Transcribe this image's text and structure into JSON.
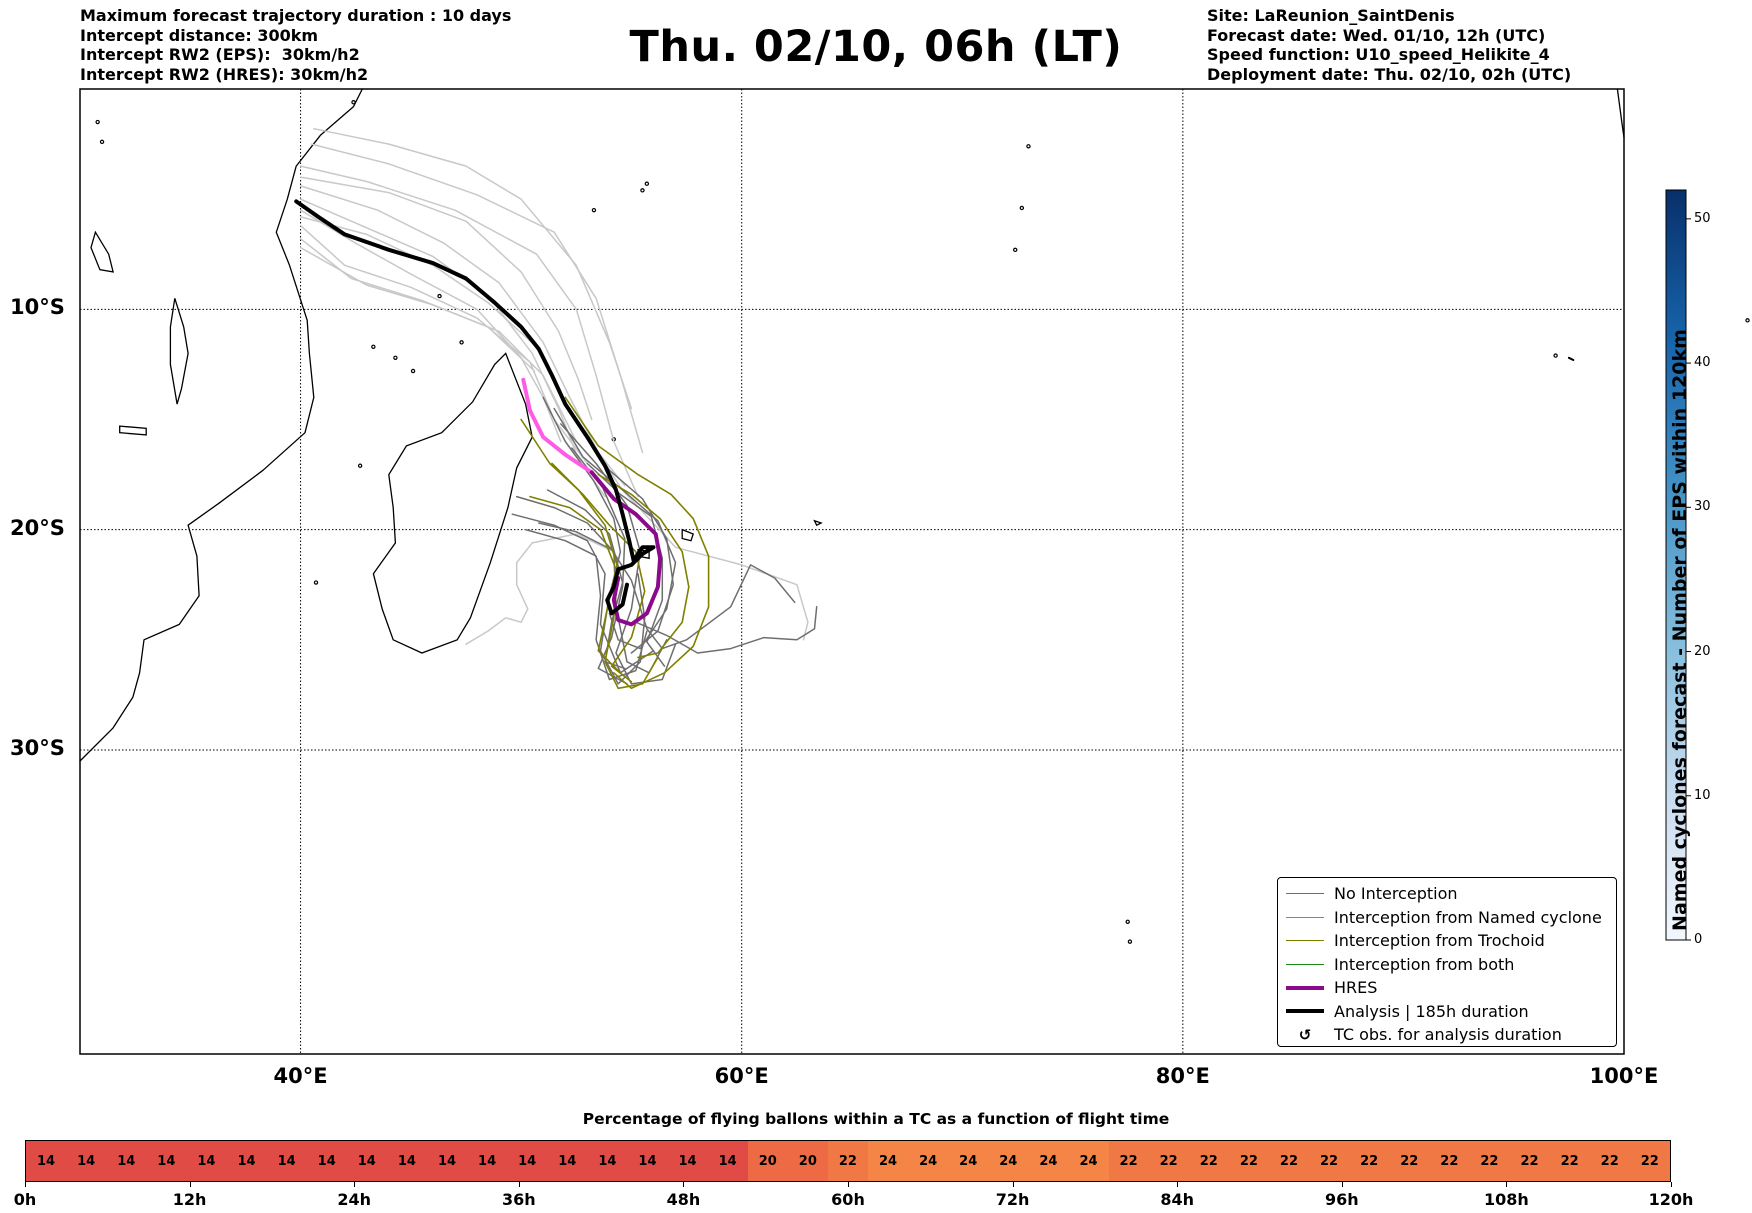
{
  "header_left": [
    "Maximum forecast trajectory duration : 10 days",
    "Intercept distance: 300km",
    "Intercept RW2 (EPS):  30km/h2",
    "Intercept RW2 (HRES): 30km/h2"
  ],
  "title": "Thu. 02/10, 06h (LT)",
  "header_right": [
    "Site: LaReunion_SaintDenis",
    "Forecast date: Wed. 01/10, 12h (UTC)",
    "Speed function: U10_speed_Helikite_4",
    "Deployment date: Thu. 02/10, 02h (UTC)"
  ],
  "map": {
    "lat_labels": [
      "10°S",
      "20°S",
      "30°S"
    ],
    "lon_labels": [
      "40°E",
      "60°E",
      "80°E",
      "100°E"
    ],
    "lon_range": [
      30,
      100
    ],
    "lat_range": [
      -43.8,
      0
    ]
  },
  "colorbar": {
    "title": "Named cyclones forecast - Number of EPS within 120km",
    "ticks": [
      "0",
      "10",
      "20",
      "30",
      "40",
      "50"
    ],
    "range": [
      0,
      52
    ],
    "colors": [
      "#f2f7fd",
      "#c7dbef",
      "#84bcdb",
      "#4292c6",
      "#1764ab",
      "#08306b"
    ]
  },
  "legend": [
    {
      "label": "No Interception",
      "color": "#6e6e6e",
      "kind": "line",
      "width": 1.5
    },
    {
      "label": "Interception from Named cyclone",
      "color": "#ff5a1e",
      "kind": "line",
      "width": 1.5
    },
    {
      "label": "Interception from Trochoid",
      "color": "#808000",
      "kind": "line",
      "width": 1.5
    },
    {
      "label": "Interception from both",
      "color": "#1a8a1a",
      "kind": "line",
      "width": 1.5
    },
    {
      "label": "HRES",
      "color": "#8b0a8b",
      "kind": "line",
      "width": 4
    },
    {
      "label": "Analysis | 185h duration",
      "color": "#000000",
      "kind": "line",
      "width": 4
    },
    {
      "label": "TC obs. for analysis duration",
      "color": "#000000",
      "kind": "symbol",
      "symbol": "↺"
    }
  ],
  "percent_bar": {
    "title": "Percentage of flying ballons within a TC as a function of flight time",
    "values": [
      14,
      14,
      14,
      14,
      14,
      14,
      14,
      14,
      14,
      14,
      14,
      14,
      14,
      14,
      14,
      14,
      14,
      14,
      20,
      20,
      22,
      24,
      24,
      24,
      24,
      24,
      24,
      22,
      22,
      22,
      22,
      22,
      22,
      22,
      22,
      22,
      22,
      22,
      22,
      22,
      22
    ],
    "colors": {
      "14": "#e04b46",
      "20": "#ed6a44",
      "22": "#f07845",
      "24": "#f48547"
    },
    "time_labels": [
      "0h",
      "12h",
      "24h",
      "36h",
      "48h",
      "60h",
      "72h",
      "84h",
      "96h",
      "108h",
      "120h"
    ]
  }
}
